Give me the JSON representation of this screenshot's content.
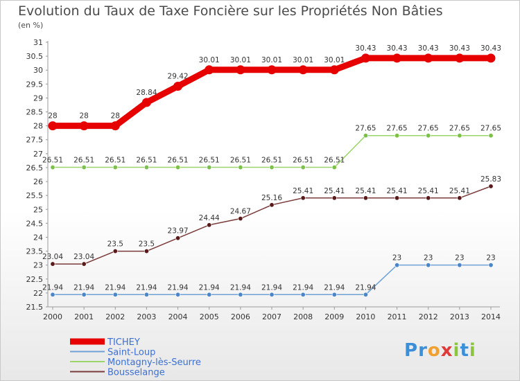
{
  "header": {
    "title": "Evolution du Taux de Taxe Foncière sur les Propriétés Non Bâties",
    "subtitle": "(en %)"
  },
  "logo": {
    "text": "Proxiti",
    "letters": [
      {
        "ch": "P",
        "color": "#3a8fd8"
      },
      {
        "ch": "r",
        "color": "#3a8fd8"
      },
      {
        "ch": "o",
        "color": "#f0a030"
      },
      {
        "ch": "x",
        "color": "#e03a3a"
      },
      {
        "ch": "i",
        "color": "#8cc63e"
      },
      {
        "ch": "t",
        "color": "#3a8fd8"
      },
      {
        "ch": "i",
        "color": "#8cc63e"
      }
    ]
  },
  "chart_data": {
    "type": "line",
    "title": "Evolution du Taux de Taxe Foncière sur les Propriétés Non Bâties",
    "ylabel": "(en %)",
    "xlabel": "",
    "ylim": [
      21.5,
      31
    ],
    "ystep": 0.5,
    "grid": false,
    "legend_position": "bottom-left",
    "x": [
      "2000",
      "2001",
      "2002",
      "2003",
      "2004",
      "2005",
      "2006",
      "2007",
      "2008",
      "2009",
      "2010",
      "2011",
      "2012",
      "2013",
      "2014"
    ],
    "series": [
      {
        "name": "TICHEY",
        "color": "#e60000",
        "marker_color": "#e60000",
        "emphasis": true,
        "values": [
          28,
          28,
          28,
          28.84,
          29.42,
          30.01,
          30.01,
          30.01,
          30.01,
          30.01,
          30.43,
          30.43,
          30.43,
          30.43,
          30.43
        ],
        "labels": [
          "28",
          "28",
          "28",
          "28.84",
          "29.42",
          "30.01",
          "30.01",
          "30.01",
          "30.01",
          "30.01",
          "30.43",
          "30.43",
          "30.43",
          "30.43",
          "30.43"
        ]
      },
      {
        "name": "Saint-Loup",
        "color": "#6fa1d4",
        "marker_color": "#4a86c8",
        "emphasis": false,
        "values": [
          21.94,
          21.94,
          21.94,
          21.94,
          21.94,
          21.94,
          21.94,
          21.94,
          21.94,
          21.94,
          21.94,
          23,
          23,
          23,
          23
        ],
        "labels": [
          "21.94",
          "21.94",
          "21.94",
          "21.94",
          "21.94",
          "21.94",
          "21.94",
          "21.94",
          "21.94",
          "21.94",
          "21.94",
          "23",
          "23",
          "23",
          "23"
        ]
      },
      {
        "name": "Montagny-lès-Seurre",
        "color": "#9ad46a",
        "marker_color": "#7cc04a",
        "emphasis": false,
        "values": [
          26.51,
          26.51,
          26.51,
          26.51,
          26.51,
          26.51,
          26.51,
          26.51,
          26.51,
          26.51,
          27.65,
          27.65,
          27.65,
          27.65,
          27.65
        ],
        "labels": [
          "26.51",
          "26.51",
          "26.51",
          "26.51",
          "26.51",
          "26.51",
          "26.51",
          "26.51",
          "26.51",
          "26.51",
          "27.65",
          "27.65",
          "27.65",
          "27.65",
          "27.65"
        ]
      },
      {
        "name": "Bousselange",
        "color": "#7a3a3a",
        "marker_color": "#5a1a1a",
        "emphasis": false,
        "values": [
          23.04,
          23.04,
          23.5,
          23.5,
          23.97,
          24.44,
          24.67,
          25.16,
          25.41,
          25.41,
          25.41,
          25.41,
          25.41,
          25.41,
          25.83
        ],
        "labels": [
          "23.04",
          "23.04",
          "23.5",
          "23.5",
          "23.97",
          "24.44",
          "24.67",
          "25.16",
          "25.41",
          "25.41",
          "25.41",
          "25.41",
          "25.41",
          "25.41",
          "25.83"
        ]
      }
    ]
  }
}
